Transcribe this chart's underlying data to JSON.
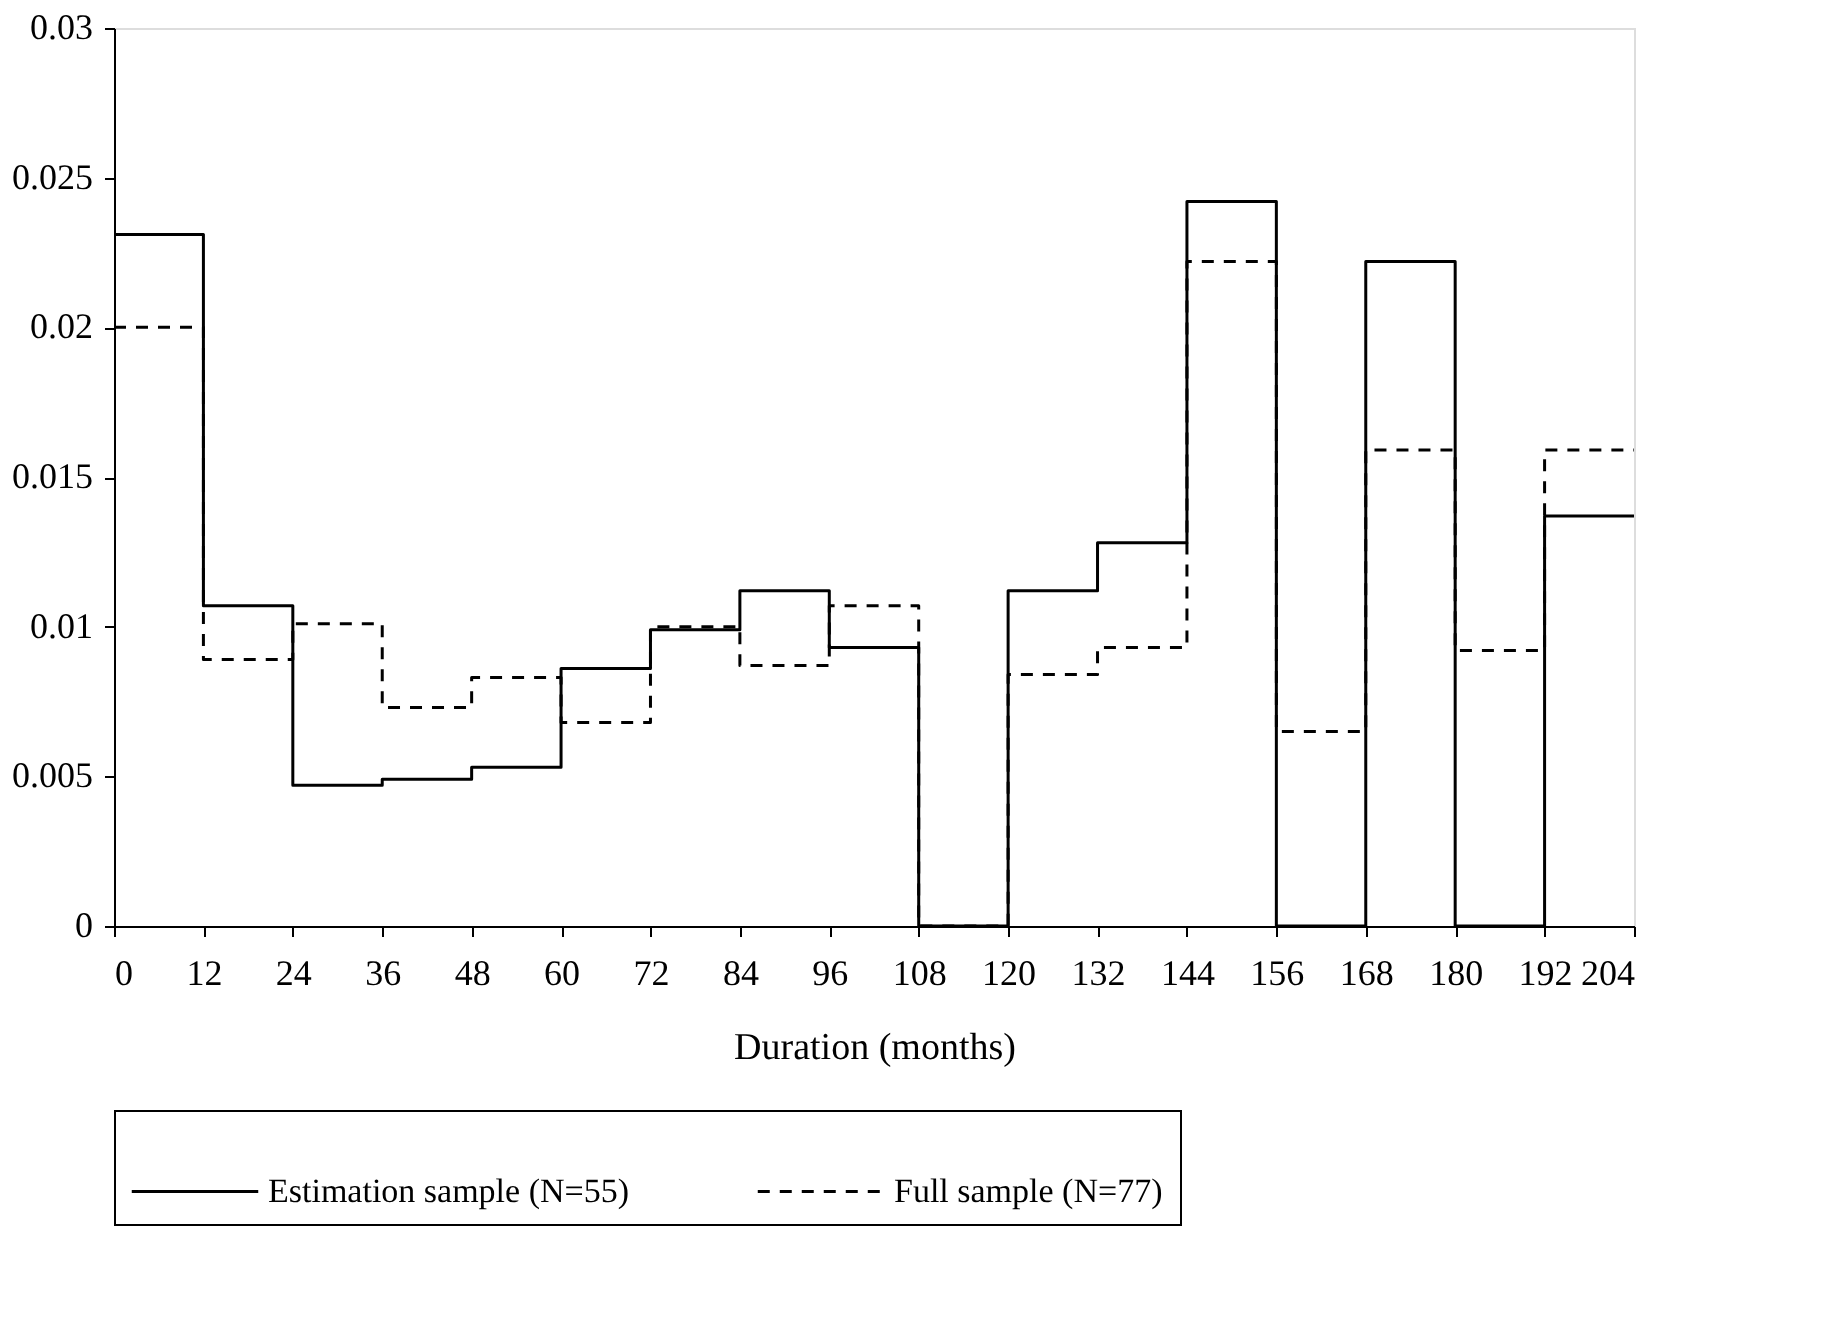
{
  "chart_data": {
    "type": "step",
    "xlabel": "Duration (months)",
    "x": [
      0,
      12,
      24,
      36,
      48,
      60,
      72,
      84,
      96,
      108,
      120,
      132,
      144,
      156,
      168,
      180,
      192,
      204
    ],
    "series": [
      {
        "name": "Estimation sample (N=55)",
        "color": "#000000",
        "line_style": "solid",
        "values": [
          0.0231,
          0.0107,
          0.0047,
          0.0049,
          0.0053,
          0.0086,
          0.0099,
          0.0112,
          0.0093,
          0,
          0.0112,
          0.0128,
          0.0242,
          0,
          0.0222,
          0,
          0.0137,
          0.0137
        ]
      },
      {
        "name": "Full sample (N=77)",
        "color": "#000000",
        "line_style": "dashed",
        "values": [
          0.02,
          0.0089,
          0.0101,
          0.0073,
          0.0083,
          0.0068,
          0.01,
          0.0087,
          0.0107,
          0,
          0.0084,
          0.0093,
          0.0222,
          0.0065,
          0.0159,
          0.0092,
          0.0159,
          0.0159
        ]
      }
    ],
    "xlim": [
      0,
      204
    ],
    "xticks": [
      0,
      12,
      24,
      36,
      48,
      60,
      72,
      84,
      96,
      108,
      120,
      132,
      144,
      156,
      168,
      180,
      192,
      204
    ],
    "ylim": [
      0,
      0.03
    ],
    "yticks": [
      0,
      0.005,
      0.01,
      0.015,
      0.02,
      0.025,
      0.03
    ],
    "grid": false,
    "legend": "bottom",
    "marker": "none"
  }
}
